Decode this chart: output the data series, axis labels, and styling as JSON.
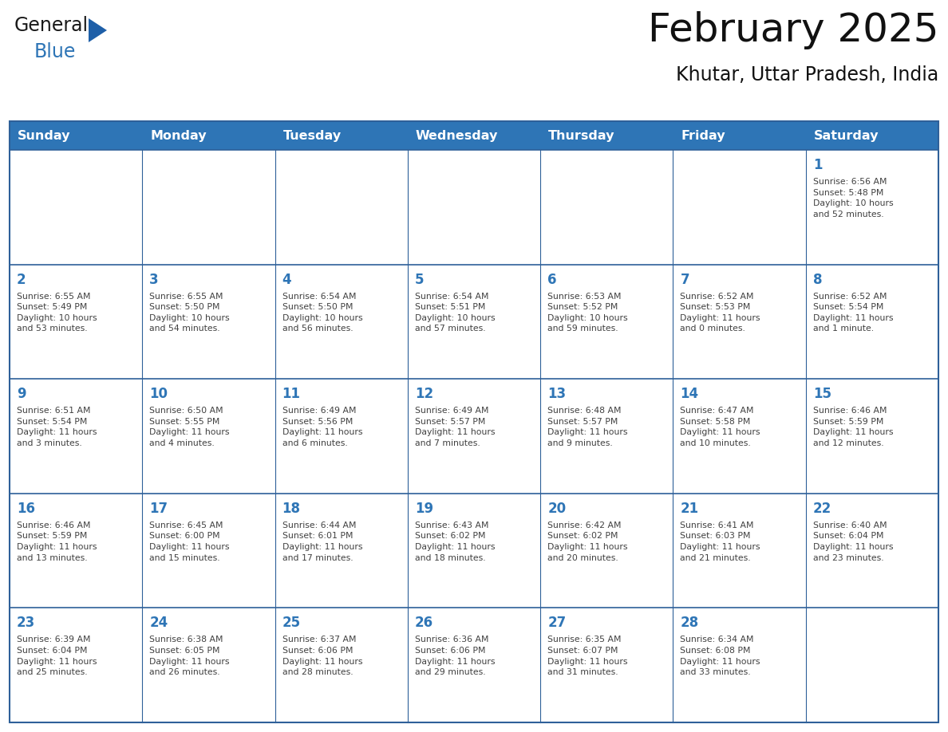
{
  "title": "February 2025",
  "subtitle": "Khutar, Uttar Pradesh, India",
  "header_bg": "#2e75b6",
  "header_text_color": "#ffffff",
  "cell_bg": "#ffffff",
  "cell_border_color": "#2e6099",
  "day_number_color": "#2e75b6",
  "cell_text_color": "#404040",
  "background_color": "#ffffff",
  "logo_general_color": "#1a1a1a",
  "logo_blue_color": "#2e75b6",
  "logo_triangle_color": "#1e5fa8",
  "days_of_week": [
    "Sunday",
    "Monday",
    "Tuesday",
    "Wednesday",
    "Thursday",
    "Friday",
    "Saturday"
  ],
  "calendar_data": [
    [
      null,
      null,
      null,
      null,
      null,
      null,
      {
        "day": 1,
        "sunrise": "6:56 AM",
        "sunset": "5:48 PM",
        "daylight": "10 hours\nand 52 minutes."
      }
    ],
    [
      {
        "day": 2,
        "sunrise": "6:55 AM",
        "sunset": "5:49 PM",
        "daylight": "10 hours\nand 53 minutes."
      },
      {
        "day": 3,
        "sunrise": "6:55 AM",
        "sunset": "5:50 PM",
        "daylight": "10 hours\nand 54 minutes."
      },
      {
        "day": 4,
        "sunrise": "6:54 AM",
        "sunset": "5:50 PM",
        "daylight": "10 hours\nand 56 minutes."
      },
      {
        "day": 5,
        "sunrise": "6:54 AM",
        "sunset": "5:51 PM",
        "daylight": "10 hours\nand 57 minutes."
      },
      {
        "day": 6,
        "sunrise": "6:53 AM",
        "sunset": "5:52 PM",
        "daylight": "10 hours\nand 59 minutes."
      },
      {
        "day": 7,
        "sunrise": "6:52 AM",
        "sunset": "5:53 PM",
        "daylight": "11 hours\nand 0 minutes."
      },
      {
        "day": 8,
        "sunrise": "6:52 AM",
        "sunset": "5:54 PM",
        "daylight": "11 hours\nand 1 minute."
      }
    ],
    [
      {
        "day": 9,
        "sunrise": "6:51 AM",
        "sunset": "5:54 PM",
        "daylight": "11 hours\nand 3 minutes."
      },
      {
        "day": 10,
        "sunrise": "6:50 AM",
        "sunset": "5:55 PM",
        "daylight": "11 hours\nand 4 minutes."
      },
      {
        "day": 11,
        "sunrise": "6:49 AM",
        "sunset": "5:56 PM",
        "daylight": "11 hours\nand 6 minutes."
      },
      {
        "day": 12,
        "sunrise": "6:49 AM",
        "sunset": "5:57 PM",
        "daylight": "11 hours\nand 7 minutes."
      },
      {
        "day": 13,
        "sunrise": "6:48 AM",
        "sunset": "5:57 PM",
        "daylight": "11 hours\nand 9 minutes."
      },
      {
        "day": 14,
        "sunrise": "6:47 AM",
        "sunset": "5:58 PM",
        "daylight": "11 hours\nand 10 minutes."
      },
      {
        "day": 15,
        "sunrise": "6:46 AM",
        "sunset": "5:59 PM",
        "daylight": "11 hours\nand 12 minutes."
      }
    ],
    [
      {
        "day": 16,
        "sunrise": "6:46 AM",
        "sunset": "5:59 PM",
        "daylight": "11 hours\nand 13 minutes."
      },
      {
        "day": 17,
        "sunrise": "6:45 AM",
        "sunset": "6:00 PM",
        "daylight": "11 hours\nand 15 minutes."
      },
      {
        "day": 18,
        "sunrise": "6:44 AM",
        "sunset": "6:01 PM",
        "daylight": "11 hours\nand 17 minutes."
      },
      {
        "day": 19,
        "sunrise": "6:43 AM",
        "sunset": "6:02 PM",
        "daylight": "11 hours\nand 18 minutes."
      },
      {
        "day": 20,
        "sunrise": "6:42 AM",
        "sunset": "6:02 PM",
        "daylight": "11 hours\nand 20 minutes."
      },
      {
        "day": 21,
        "sunrise": "6:41 AM",
        "sunset": "6:03 PM",
        "daylight": "11 hours\nand 21 minutes."
      },
      {
        "day": 22,
        "sunrise": "6:40 AM",
        "sunset": "6:04 PM",
        "daylight": "11 hours\nand 23 minutes."
      }
    ],
    [
      {
        "day": 23,
        "sunrise": "6:39 AM",
        "sunset": "6:04 PM",
        "daylight": "11 hours\nand 25 minutes."
      },
      {
        "day": 24,
        "sunrise": "6:38 AM",
        "sunset": "6:05 PM",
        "daylight": "11 hours\nand 26 minutes."
      },
      {
        "day": 25,
        "sunrise": "6:37 AM",
        "sunset": "6:06 PM",
        "daylight": "11 hours\nand 28 minutes."
      },
      {
        "day": 26,
        "sunrise": "6:36 AM",
        "sunset": "6:06 PM",
        "daylight": "11 hours\nand 29 minutes."
      },
      {
        "day": 27,
        "sunrise": "6:35 AM",
        "sunset": "6:07 PM",
        "daylight": "11 hours\nand 31 minutes."
      },
      {
        "day": 28,
        "sunrise": "6:34 AM",
        "sunset": "6:08 PM",
        "daylight": "11 hours\nand 33 minutes."
      },
      null
    ]
  ]
}
